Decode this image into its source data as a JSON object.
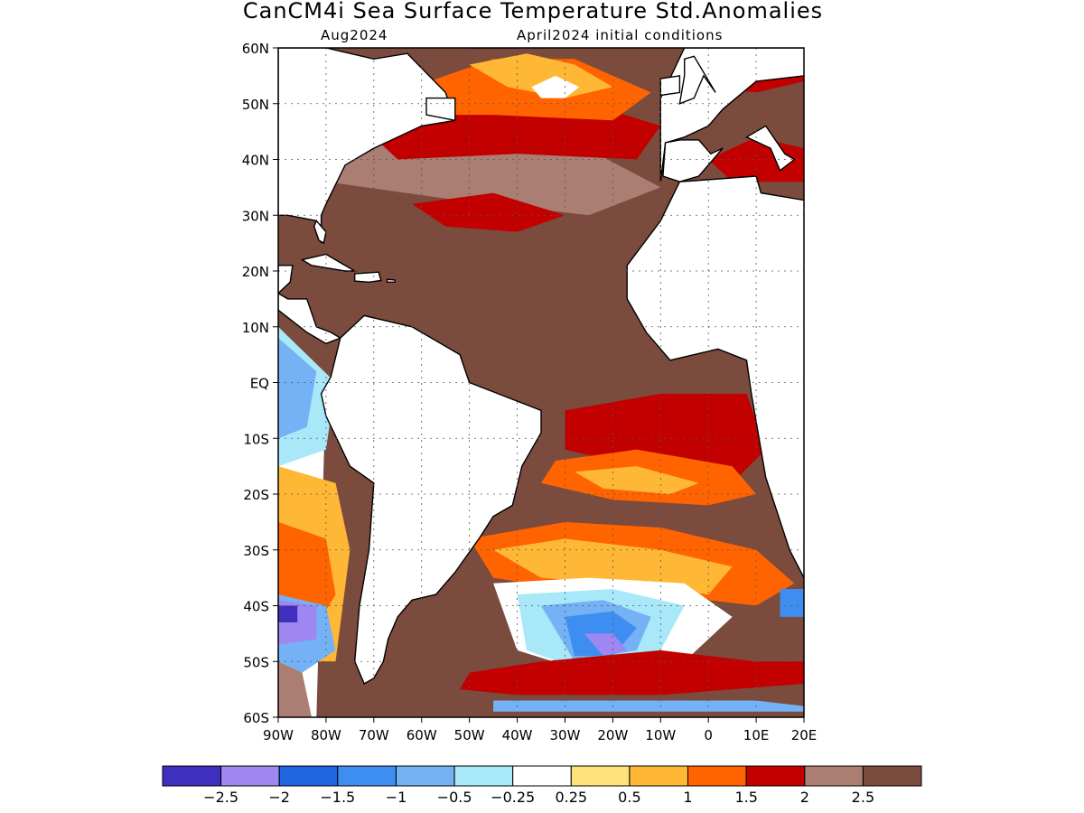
{
  "title": "CanCM4i Sea Surface Temperature Std.Anomalies",
  "subtitle_left": "Aug2024",
  "subtitle_right": "April2024 initial conditions",
  "map": {
    "lon_range": [
      -90,
      20
    ],
    "lat_range": [
      -60,
      60
    ],
    "lat_ticks": [
      {
        "value": 60,
        "label": "60N"
      },
      {
        "value": 50,
        "label": "50N"
      },
      {
        "value": 40,
        "label": "40N"
      },
      {
        "value": 30,
        "label": "30N"
      },
      {
        "value": 20,
        "label": "20N"
      },
      {
        "value": 10,
        "label": "10N"
      },
      {
        "value": 0,
        "label": "EQ"
      },
      {
        "value": -10,
        "label": "10S"
      },
      {
        "value": -20,
        "label": "20S"
      },
      {
        "value": -30,
        "label": "30S"
      },
      {
        "value": -40,
        "label": "40S"
      },
      {
        "value": -50,
        "label": "50S"
      },
      {
        "value": -60,
        "label": "60S"
      }
    ],
    "lon_ticks": [
      {
        "value": -90,
        "label": "90W"
      },
      {
        "value": -80,
        "label": "80W"
      },
      {
        "value": -70,
        "label": "70W"
      },
      {
        "value": -60,
        "label": "60W"
      },
      {
        "value": -50,
        "label": "50W"
      },
      {
        "value": -40,
        "label": "40W"
      },
      {
        "value": -30,
        "label": "30W"
      },
      {
        "value": -20,
        "label": "20W"
      },
      {
        "value": -10,
        "label": "10W"
      },
      {
        "value": 0,
        "label": "0"
      },
      {
        "value": 10,
        "label": "10E"
      },
      {
        "value": 20,
        "label": "20E"
      }
    ],
    "grid": "dotted",
    "anomaly_regions": [
      {
        "color": "#7b4b3e",
        "lons": [
          -85,
          -60,
          -40,
          -25,
          -15,
          -20,
          -35,
          -55,
          -75,
          -88
        ],
        "lats": [
          32,
          38,
          32,
          28,
          15,
          5,
          0,
          5,
          12,
          22
        ]
      },
      {
        "color": "#7b4b3e",
        "lons": [
          -35,
          -20,
          -5,
          10,
          12,
          5,
          -10,
          -25,
          -38
        ],
        "lats": [
          -2,
          2,
          4,
          0,
          -10,
          -22,
          -26,
          -26,
          -18
        ]
      },
      {
        "color": "#7b4b3e",
        "lons": [
          -15,
          0,
          15,
          20,
          20,
          5,
          -15,
          -25
        ],
        "lats": [
          -40,
          -38,
          -38,
          -45,
          -58,
          -58,
          -55,
          -48
        ]
      },
      {
        "color": "#ab7e73",
        "lons": [
          -85,
          -60,
          -30,
          -10,
          -25,
          -55,
          -80
        ],
        "lats": [
          40,
          45,
          44,
          35,
          30,
          33,
          36
        ]
      },
      {
        "color": "#c20000",
        "lons": [
          -70,
          -50,
          -25,
          -10,
          -15,
          -40,
          -65
        ],
        "lats": [
          44,
          50,
          50,
          46,
          40,
          41,
          40
        ]
      },
      {
        "color": "#ff6400",
        "lons": [
          -65,
          -45,
          -28,
          -12,
          -20,
          -45,
          -60
        ],
        "lats": [
          52,
          58,
          58,
          52,
          47,
          48,
          48
        ]
      },
      {
        "color": "#ffb836",
        "lons": [
          -50,
          -38,
          -28,
          -20,
          -30,
          -42
        ],
        "lats": [
          57,
          59,
          57,
          53,
          51,
          53
        ]
      },
      {
        "color": "#ffffff",
        "lons": [
          -37,
          -32,
          -27,
          -30,
          -35
        ],
        "lats": [
          53,
          55,
          53,
          51,
          51
        ]
      },
      {
        "color": "#c20000",
        "lons": [
          -62,
          -45,
          -30,
          -40,
          -55
        ],
        "lats": [
          32,
          34,
          30,
          27,
          28
        ]
      },
      {
        "color": "#c20000",
        "lons": [
          -30,
          -10,
          8,
          12,
          5,
          -15,
          -30
        ],
        "lats": [
          -5,
          -2,
          -2,
          -12,
          -18,
          -15,
          -12
        ]
      },
      {
        "color": "#ff6400",
        "lons": [
          -32,
          -15,
          5,
          10,
          0,
          -20,
          -35
        ],
        "lats": [
          -14,
          -12,
          -15,
          -20,
          -22,
          -21,
          -18
        ]
      },
      {
        "color": "#ffb836",
        "lons": [
          -28,
          -15,
          -2,
          -8,
          -22
        ],
        "lats": [
          -16,
          -15,
          -18,
          -20,
          -19
        ]
      },
      {
        "color": "#ff6400",
        "lons": [
          -50,
          -30,
          -10,
          10,
          18,
          10,
          -10,
          -30,
          -45
        ],
        "lats": [
          -28,
          -25,
          -26,
          -30,
          -36,
          -40,
          -38,
          -37,
          -35
        ]
      },
      {
        "color": "#ffb836",
        "lons": [
          -45,
          -30,
          -10,
          5,
          0,
          -20,
          -35
        ],
        "lats": [
          -30,
          -28,
          -30,
          -33,
          -38,
          -36,
          -35
        ]
      },
      {
        "color": "#ffffff",
        "lons": [
          -45,
          -25,
          -5,
          5,
          -5,
          -25,
          -40
        ],
        "lats": [
          -36,
          -35,
          -36,
          -42,
          -50,
          -52,
          -48
        ]
      },
      {
        "color": "#a8e8f8",
        "lons": [
          -40,
          -20,
          -5,
          -10,
          -25,
          -38
        ],
        "lats": [
          -38,
          -37,
          -40,
          -48,
          -52,
          -48
        ]
      },
      {
        "color": "#74b1f5",
        "lons": [
          -35,
          -22,
          -12,
          -15,
          -28
        ],
        "lats": [
          -40,
          -39,
          -42,
          -48,
          -50
        ]
      },
      {
        "color": "#3d8ef0",
        "lons": [
          -30,
          -20,
          -15,
          -20,
          -28
        ],
        "lats": [
          -42,
          -41,
          -44,
          -49,
          -49
        ]
      },
      {
        "color": "#9f87f2",
        "lons": [
          -26,
          -20,
          -17,
          -22
        ],
        "lats": [
          -45,
          -45,
          -48,
          -49
        ]
      },
      {
        "color": "#c20000",
        "lons": [
          -50,
          -35,
          -10,
          10,
          20,
          20,
          -10,
          -40,
          -52
        ],
        "lats": [
          -52,
          -50,
          -48,
          -50,
          -50,
          -54,
          -56,
          -56,
          -55
        ]
      },
      {
        "color": "#74b1f5",
        "lons": [
          -45,
          -20,
          10,
          20,
          20,
          -10,
          -45
        ],
        "lats": [
          -57,
          -57,
          -57,
          -58,
          -59,
          -59,
          -59
        ]
      },
      {
        "color": "#ffffff",
        "lons": [
          -90,
          -80,
          -82,
          -90
        ],
        "lats": [
          10,
          0,
          -60,
          -60
        ]
      },
      {
        "color": "#ffb836",
        "lons": [
          -90,
          -78,
          -75,
          -78,
          -90
        ],
        "lats": [
          -15,
          -18,
          -30,
          -50,
          -50
        ]
      },
      {
        "color": "#ff6400",
        "lons": [
          -90,
          -80,
          -78,
          -85,
          -90
        ],
        "lats": [
          -25,
          -28,
          -38,
          -48,
          -45
        ]
      },
      {
        "color": "#a8e8f8",
        "lons": [
          -90,
          -78,
          -80,
          -90
        ],
        "lats": [
          10,
          0,
          -12,
          -15
        ]
      },
      {
        "color": "#74b1f5",
        "lons": [
          -90,
          -82,
          -84,
          -90
        ],
        "lats": [
          8,
          2,
          -8,
          -10
        ]
      },
      {
        "color": "#74b1f5",
        "lons": [
          -90,
          -80,
          -78,
          -85,
          -90
        ],
        "lats": [
          -38,
          -40,
          -48,
          -52,
          -50
        ]
      },
      {
        "color": "#9f87f2",
        "lons": [
          -90,
          -82,
          -82,
          -90
        ],
        "lats": [
          -39,
          -40,
          -46,
          -47
        ]
      },
      {
        "color": "#3f2fbf",
        "lons": [
          -90,
          -86,
          -86,
          -90
        ],
        "lats": [
          -40,
          -40,
          -43,
          -43
        ]
      },
      {
        "color": "#74b1f5",
        "lons": [
          -70,
          -68,
          -68,
          -70
        ],
        "lats": [
          -20,
          -20,
          -32,
          -32
        ]
      },
      {
        "color": "#3d8ef0",
        "lons": [
          15,
          20,
          20,
          15
        ],
        "lats": [
          -37,
          -37,
          -42,
          -42
        ]
      },
      {
        "color": "#ab7e73",
        "lons": [
          -90,
          -85,
          -83,
          -90
        ],
        "lats": [
          -50,
          -52,
          -60,
          -60
        ]
      },
      {
        "color": "#c20000",
        "lons": [
          -88,
          -80,
          -75,
          -82,
          -90
        ],
        "lats": [
          58,
          60,
          57,
          53,
          54
        ]
      },
      {
        "color": "#c20000",
        "lons": [
          -5,
          5,
          15,
          20,
          20,
          10,
          0,
          -5
        ],
        "lats": [
          56,
          60,
          60,
          58,
          54,
          52,
          53,
          55
        ]
      },
      {
        "color": "#c20000",
        "lons": [
          0,
          10,
          20,
          20,
          5
        ],
        "lats": [
          40,
          44,
          42,
          36,
          36
        ]
      }
    ],
    "land": [
      {
        "name": "north-america",
        "lons": [
          -90,
          -80,
          -70,
          -63,
          -55,
          -53,
          -60,
          -65,
          -70,
          -76,
          -80,
          -81,
          -81,
          -82,
          -88,
          -90
        ],
        "lats": [
          60,
          60,
          58,
          59,
          52,
          47,
          46,
          44,
          42,
          39,
          32,
          30,
          25,
          29,
          30,
          30
        ]
      },
      {
        "name": "florida",
        "lons": [
          -82,
          -80,
          -80.5,
          -81.5,
          -82.5
        ],
        "lats": [
          29,
          27,
          25,
          25.5,
          28
        ]
      },
      {
        "name": "yucatan",
        "lons": [
          -90,
          -87,
          -87.5,
          -90
        ],
        "lats": [
          21,
          21,
          18,
          16
        ]
      },
      {
        "name": "central-america",
        "lons": [
          -90,
          -88,
          -84,
          -82,
          -79,
          -77,
          -80,
          -84,
          -90
        ],
        "lats": [
          16,
          15,
          15,
          10,
          9,
          8,
          7,
          9,
          13
        ]
      },
      {
        "name": "cuba",
        "lons": [
          -85,
          -80,
          -74,
          -76,
          -83
        ],
        "lats": [
          22,
          23,
          20,
          20,
          21
        ]
      },
      {
        "name": "hispaniola",
        "lons": [
          -74,
          -69,
          -68.5,
          -71,
          -74
        ],
        "lats": [
          19.5,
          19.8,
          18.3,
          18,
          18.2
        ]
      },
      {
        "name": "puerto-rico",
        "lons": [
          -67.2,
          -65.6,
          -65.6,
          -67.2
        ],
        "lats": [
          18.5,
          18.4,
          18,
          18
        ]
      },
      {
        "name": "south-america",
        "lons": [
          -77,
          -72,
          -62,
          -52,
          -50,
          -44,
          -35,
          -35,
          -39,
          -41,
          -45,
          -48,
          -53,
          -57,
          -62,
          -65,
          -67,
          -68,
          -70,
          -72,
          -74,
          -73,
          -71,
          -70,
          -75,
          -80,
          -81,
          -79,
          -77
        ],
        "lats": [
          8,
          12,
          10,
          5,
          0,
          -2,
          -5,
          -9,
          -15,
          -22,
          -24,
          -28,
          -34,
          -38,
          -39,
          -42,
          -46,
          -50,
          -53,
          -54,
          -50,
          -40,
          -30,
          -18,
          -15,
          -6,
          -2,
          1,
          8
        ]
      },
      {
        "name": "africa",
        "lons": [
          -17,
          -10,
          -6,
          10,
          11,
          32,
          32,
          40,
          50,
          40,
          35,
          32,
          28,
          20,
          17,
          12,
          9,
          8,
          2,
          -8,
          -13,
          -17,
          -17
        ],
        "lats": [
          21,
          29,
          36,
          37,
          34,
          31,
          0,
          -10,
          -20,
          -26,
          -32,
          -34,
          -34,
          -35,
          -30,
          -17,
          -2,
          4,
          6,
          4,
          9,
          15,
          21
        ]
      },
      {
        "name": "europe",
        "lons": [
          -10,
          -9,
          -5,
          0,
          3,
          10,
          20,
          30,
          30,
          -5,
          -10
        ],
        "lats": [
          36,
          43,
          44,
          46,
          49,
          54,
          55,
          60,
          60,
          60,
          51
        ]
      },
      {
        "name": "iberia",
        "lons": [
          -9.5,
          -9,
          -6,
          -2,
          0.5,
          3,
          -2,
          -6,
          -9.5
        ],
        "lats": [
          37,
          43,
          43.5,
          43.5,
          41,
          42,
          37,
          36,
          37
        ]
      },
      {
        "name": "british-isles",
        "lons": [
          -6,
          -3,
          -1,
          1.5,
          -3,
          -5,
          -5
        ],
        "lats": [
          50,
          51,
          55,
          52,
          58.5,
          58,
          55
        ]
      },
      {
        "name": "ireland",
        "lons": [
          -10,
          -6,
          -6,
          -10
        ],
        "lats": [
          51.5,
          52,
          55,
          54.5
        ]
      },
      {
        "name": "italy",
        "lons": [
          8,
          12,
          16,
          18,
          15,
          13,
          8
        ],
        "lats": [
          44,
          46,
          41,
          40,
          38,
          42,
          44
        ]
      },
      {
        "name": "newfoundland",
        "lons": [
          -59,
          -53,
          -53,
          -59
        ],
        "lats": [
          48,
          47,
          51,
          51
        ]
      },
      {
        "name": "greenland-tip",
        "lons": [
          -50,
          -42,
          -40,
          -48
        ],
        "lats": [
          60,
          60,
          60,
          60
        ]
      }
    ]
  },
  "colorbar": {
    "colors": [
      "#3f2fbf",
      "#9f87f2",
      "#1f64e0",
      "#3d8ef0",
      "#74b1f5",
      "#a8e8f8",
      "#ffffff",
      "#ffe37a",
      "#ffb836",
      "#ff6400",
      "#c20000",
      "#ab7e73",
      "#7b4b3e"
    ],
    "labels": [
      "−2.5",
      "−2",
      "−1.5",
      "−1",
      "−0.5",
      "−0.25",
      "0.25",
      "0.5",
      "1",
      "1.5",
      "2",
      "2.5"
    ]
  }
}
